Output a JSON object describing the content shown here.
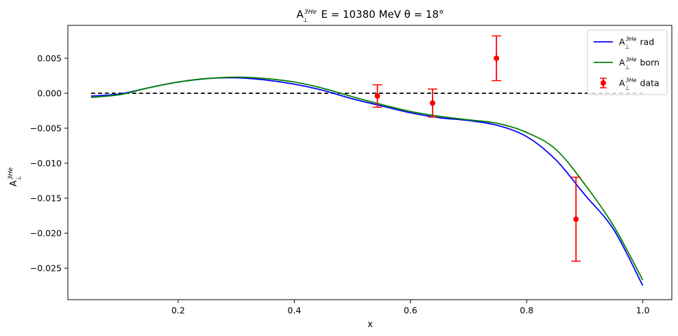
{
  "chart_data": {
    "type": "line",
    "title": {
      "main": "A",
      "sub": "⊥",
      "sup": "3He",
      "rest": " E = 10380 MeV θ = 18°"
    },
    "xlabel": "x",
    "ylabel": {
      "main": "A",
      "sub": "⊥",
      "sup": "3He"
    },
    "xlim": [
      0.01,
      1.05
    ],
    "ylim": [
      -0.0295,
      0.0097
    ],
    "xticks": [
      0.2,
      0.4,
      0.6,
      0.8,
      1.0
    ],
    "xtick_labels": [
      "0.2",
      "0.4",
      "0.6",
      "0.8",
      "1.0"
    ],
    "yticks": [
      0.005,
      0.0,
      -0.005,
      -0.01,
      -0.015,
      -0.02,
      -0.025
    ],
    "ytick_labels": [
      "0.005",
      "0.000",
      "−0.005",
      "−0.010",
      "−0.015",
      "−0.020",
      "−0.025"
    ],
    "grid": false,
    "legend_position": "top-right",
    "series": [
      {
        "name": "rad",
        "color": "#0000ff",
        "style": "solid",
        "x": [
          0.05,
          0.1,
          0.15,
          0.2,
          0.25,
          0.3,
          0.35,
          0.4,
          0.45,
          0.5,
          0.55,
          0.6,
          0.65,
          0.7,
          0.75,
          0.8,
          0.85,
          0.9,
          0.95,
          1.0
        ],
        "y": [
          -0.0004,
          -0.0001,
          0.0008,
          0.0016,
          0.0021,
          0.0022,
          0.0019,
          0.0013,
          0.0004,
          -0.0008,
          -0.0018,
          -0.0028,
          -0.0035,
          -0.0039,
          -0.0046,
          -0.0062,
          -0.0095,
          -0.0145,
          -0.0195,
          -0.0275
        ]
      },
      {
        "name": "born",
        "color": "#008000",
        "style": "solid",
        "x": [
          0.05,
          0.1,
          0.15,
          0.2,
          0.25,
          0.3,
          0.35,
          0.4,
          0.45,
          0.5,
          0.55,
          0.6,
          0.65,
          0.7,
          0.75,
          0.8,
          0.85,
          0.9,
          0.95,
          1.0
        ],
        "y": [
          -0.0006,
          -0.0002,
          0.0008,
          0.0016,
          0.0021,
          0.0023,
          0.0021,
          0.0016,
          0.0007,
          -0.0005,
          -0.0016,
          -0.0026,
          -0.0033,
          -0.0038,
          -0.0043,
          -0.0056,
          -0.008,
          -0.013,
          -0.019,
          -0.0267
        ]
      },
      {
        "name": "data",
        "color": "#ff0000",
        "style": "errorbar",
        "x": [
          0.543,
          0.638,
          0.748,
          0.885
        ],
        "y": [
          -0.0004,
          -0.0014,
          0.005,
          -0.018
        ],
        "yerr": [
          0.0016,
          0.002,
          0.0032,
          0.006
        ]
      }
    ],
    "reference_line": {
      "y": 0.0,
      "x_range": [
        0.05,
        1.0
      ],
      "color": "#000000",
      "style": "dashed"
    },
    "legend": [
      {
        "main": "A",
        "sub": "⊥",
        "sup": "3He",
        "label": " rad",
        "color": "#0000ff",
        "kind": "line"
      },
      {
        "main": "A",
        "sub": "⊥",
        "sup": "3He",
        "label": " born",
        "color": "#008000",
        "kind": "line"
      },
      {
        "main": "A",
        "sub": "⊥",
        "sup": "3He",
        "label": " data",
        "color": "#ff0000",
        "kind": "errorbar"
      }
    ]
  }
}
